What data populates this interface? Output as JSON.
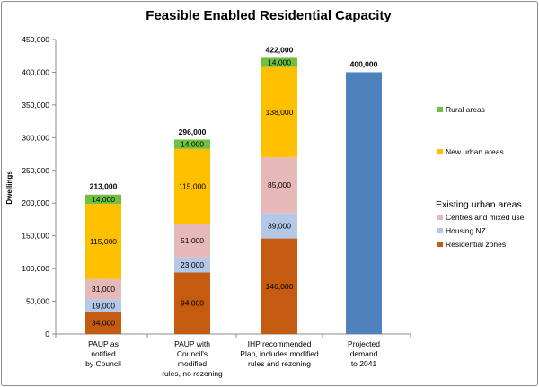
{
  "chart_data": {
    "type": "bar",
    "stacked": true,
    "title": "Feasible Enabled Residential Capacity",
    "ylabel": "Dwellings",
    "xlabel": "",
    "ylim": [
      0,
      450000
    ],
    "yticks": [
      0,
      50000,
      100000,
      150000,
      200000,
      250000,
      300000,
      350000,
      400000,
      450000
    ],
    "ytick_labels": [
      "0",
      "50,000",
      "100,000",
      "150,000",
      "200,000",
      "250,000",
      "300,000",
      "350,000",
      "400,000",
      "450,000"
    ],
    "grid": false,
    "categories": [
      [
        "PAUP as",
        "notified",
        "by Council"
      ],
      [
        "PAUP with",
        "Council's",
        "modified",
        "rules, no rezoning"
      ],
      [
        "IHP recommended",
        "Plan, includes modified",
        "rules and rezoning"
      ],
      [
        "Projected",
        "demand",
        "to 2041"
      ]
    ],
    "series": [
      {
        "name": "Residential zones",
        "color": "#C55A11",
        "values": [
          34000,
          94000,
          146000,
          null
        ],
        "labels": [
          "34,000",
          "94,000",
          "146,000",
          null
        ]
      },
      {
        "name": "Housing NZ",
        "color": "#B4C7E7",
        "values": [
          19000,
          23000,
          39000,
          null
        ],
        "labels": [
          "19,000",
          "23,000",
          "39,000",
          null
        ]
      },
      {
        "name": "Centres and mixed use",
        "color": "#E6B9B8",
        "values": [
          31000,
          51000,
          85000,
          null
        ],
        "labels": [
          "31,000",
          "51,000",
          "85,000",
          null
        ]
      },
      {
        "name": "New urban areas",
        "color": "#FFC000",
        "values": [
          115000,
          115000,
          138000,
          null
        ],
        "labels": [
          "115,000",
          "115,000",
          "138,000",
          null
        ]
      },
      {
        "name": "Rural areas",
        "color": "#70C040",
        "values": [
          14000,
          14000,
          14000,
          null
        ],
        "labels": [
          "14,000",
          "14,000",
          "14,000",
          null
        ]
      },
      {
        "name": "Projected demand",
        "color": "#4F81BD",
        "values": [
          null,
          null,
          null,
          400000
        ],
        "labels": [
          null,
          null,
          null,
          null
        ]
      }
    ],
    "totals": [
      213000,
      296000,
      422000,
      400000
    ],
    "total_labels": [
      "213,000",
      "296,000",
      "422,000",
      "400,000"
    ],
    "legend": {
      "placement": "right",
      "group_title": "Existing urban areas",
      "items": [
        {
          "label": "Rural areas",
          "color": "#70C040"
        },
        {
          "label": "New urban areas",
          "color": "#FFC000"
        },
        {
          "label": "Centres and mixed use",
          "color": "#E6B9B8"
        },
        {
          "label": "Housing NZ",
          "color": "#B4C7E7"
        },
        {
          "label": "Residential zones",
          "color": "#C55A11"
        }
      ]
    }
  }
}
